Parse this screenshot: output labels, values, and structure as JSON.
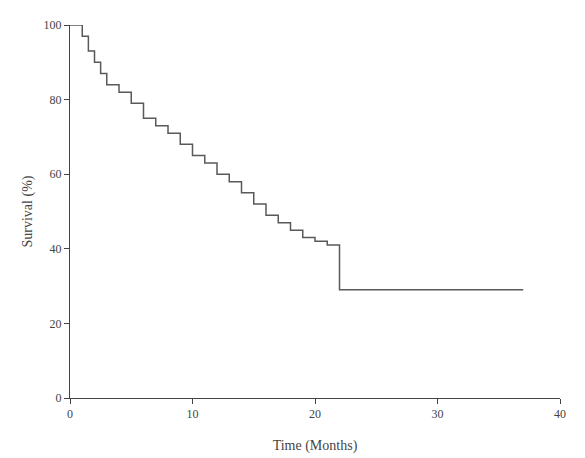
{
  "chart_data": {
    "type": "step",
    "xlabel": "Time (Months)",
    "ylabel": "Survival (%)",
    "x": [
      0,
      1,
      1.5,
      2,
      2.5,
      3,
      4,
      5,
      6,
      7,
      8,
      9,
      10,
      11,
      12,
      13,
      14,
      15,
      16,
      17,
      18,
      19,
      20,
      21,
      22,
      23,
      37
    ],
    "values": [
      100,
      97,
      93,
      90,
      87,
      84,
      82,
      79,
      75,
      73,
      71,
      68,
      65,
      63,
      60,
      58,
      55,
      52,
      49,
      47,
      45,
      43,
      42,
      41,
      29,
      29,
      29
    ],
    "color": "#595959",
    "xlim": [
      0,
      40
    ],
    "ylim": [
      0,
      100
    ],
    "xticks": [
      0,
      10,
      20,
      30,
      40
    ],
    "yticks": [
      0,
      20,
      40,
      60,
      80,
      100
    ],
    "grid": false
  }
}
